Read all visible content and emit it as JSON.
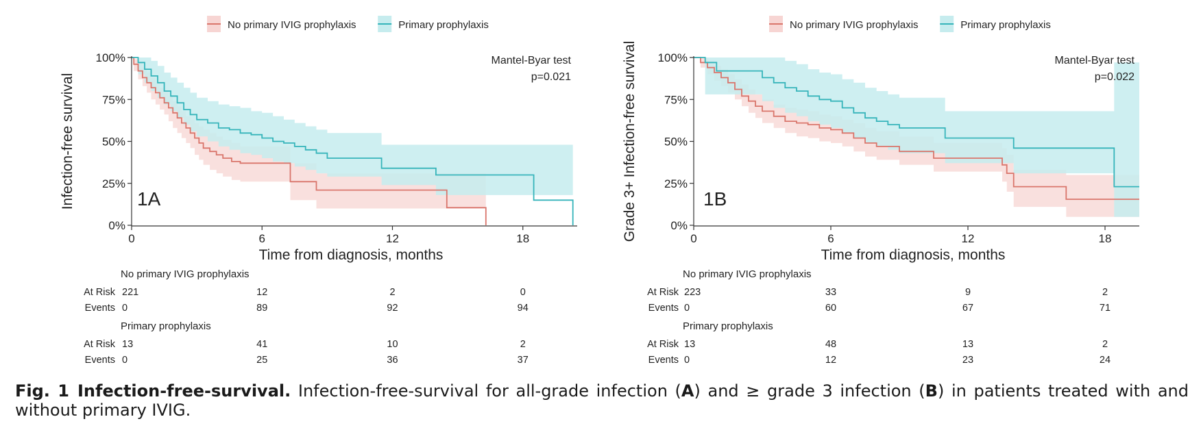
{
  "colors": {
    "no_ivig": "#d9756b",
    "no_ivig_band": "#f7d5d3",
    "primary": "#35b4ba",
    "primary_band": "#c6ecee",
    "axis": "#333333"
  },
  "chart_data": [
    {
      "type": "line",
      "panel_label": "1A",
      "ylabel": "Infection-free survival",
      "xlabel": "Time from diagnosis, months",
      "xlim": [
        0,
        20.5
      ],
      "ylim": [
        0,
        1
      ],
      "x_ticks": [
        0,
        6,
        12,
        18
      ],
      "x_tick_labels": [
        "0",
        "6",
        "12",
        "18"
      ],
      "y_ticks": [
        0,
        0.25,
        0.5,
        0.75,
        1
      ],
      "y_tick_labels": [
        "0%",
        "25%",
        "50%",
        "75%",
        "100%"
      ],
      "test": {
        "name": "Mantel-Byar test",
        "p": "p=0.021"
      },
      "legend": {
        "position": "top-center"
      },
      "series": [
        {
          "name": "No primary IVIG prophylaxis",
          "color_key": "no_ivig",
          "x": [
            0,
            0.1,
            0.3,
            0.5,
            0.7,
            0.9,
            1.1,
            1.3,
            1.5,
            1.7,
            1.9,
            2.1,
            2.3,
            2.5,
            2.7,
            2.9,
            3.1,
            3.3,
            3.6,
            3.9,
            4.2,
            4.6,
            5.0,
            5.5,
            6.0,
            6.5,
            7.0,
            7.3,
            7.6,
            8.2,
            8.5,
            9.0,
            10.0,
            11.0,
            12.0,
            13.0,
            14.0,
            14.5,
            15.0,
            15.5,
            16.0,
            16.3
          ],
          "y": [
            1.0,
            0.96,
            0.92,
            0.88,
            0.85,
            0.82,
            0.79,
            0.76,
            0.73,
            0.7,
            0.67,
            0.64,
            0.61,
            0.58,
            0.55,
            0.52,
            0.49,
            0.46,
            0.44,
            0.42,
            0.4,
            0.38,
            0.37,
            0.37,
            0.37,
            0.37,
            0.37,
            0.26,
            0.26,
            0.26,
            0.21,
            0.21,
            0.21,
            0.21,
            0.21,
            0.21,
            0.21,
            0.105,
            0.105,
            0.105,
            0.105,
            0.0
          ],
          "lower": [
            1.0,
            0.92,
            0.87,
            0.83,
            0.79,
            0.75,
            0.72,
            0.69,
            0.66,
            0.62,
            0.58,
            0.55,
            0.52,
            0.49,
            0.46,
            0.42,
            0.39,
            0.36,
            0.33,
            0.31,
            0.29,
            0.27,
            0.26,
            0.26,
            0.26,
            0.26,
            0.26,
            0.15,
            0.15,
            0.15,
            0.1,
            0.1,
            0.1,
            0.1,
            0.1,
            0.1,
            0.1,
            0.1,
            0.1,
            0.1,
            0.1,
            0.1
          ],
          "upper": [
            1.0,
            0.99,
            0.97,
            0.94,
            0.91,
            0.88,
            0.85,
            0.82,
            0.8,
            0.77,
            0.74,
            0.71,
            0.68,
            0.65,
            0.63,
            0.61,
            0.59,
            0.57,
            0.55,
            0.53,
            0.51,
            0.49,
            0.47,
            0.47,
            0.47,
            0.47,
            0.47,
            0.37,
            0.37,
            0.37,
            0.31,
            0.31,
            0.31,
            0.31,
            0.31,
            0.31,
            0.31,
            0.31,
            0.31,
            0.31,
            0.31,
            0.31
          ]
        },
        {
          "name": "Primary prophylaxis",
          "color_key": "primary",
          "x": [
            0,
            0.3,
            0.6,
            0.9,
            1.2,
            1.5,
            1.8,
            2.1,
            2.4,
            2.7,
            3.0,
            3.5,
            4.0,
            4.5,
            5.0,
            5.5,
            6.0,
            6.5,
            7.0,
            7.5,
            8.0,
            8.5,
            9.0,
            10.0,
            11.0,
            11.5,
            12.0,
            13.0,
            14.0,
            15.0,
            16.0,
            17.0,
            18.0,
            18.5,
            19.0,
            19.5,
            20.0,
            20.3
          ],
          "y": [
            1.0,
            0.97,
            0.93,
            0.89,
            0.85,
            0.8,
            0.77,
            0.73,
            0.69,
            0.66,
            0.63,
            0.61,
            0.58,
            0.57,
            0.55,
            0.54,
            0.52,
            0.5,
            0.49,
            0.47,
            0.45,
            0.43,
            0.4,
            0.4,
            0.4,
            0.34,
            0.34,
            0.34,
            0.3,
            0.3,
            0.3,
            0.3,
            0.3,
            0.15,
            0.15,
            0.15,
            0.15,
            0.0
          ],
          "lower": [
            1.0,
            0.9,
            0.85,
            0.8,
            0.76,
            0.72,
            0.68,
            0.64,
            0.6,
            0.56,
            0.53,
            0.5,
            0.47,
            0.45,
            0.43,
            0.42,
            0.4,
            0.38,
            0.37,
            0.35,
            0.33,
            0.31,
            0.29,
            0.29,
            0.29,
            0.24,
            0.24,
            0.24,
            0.18,
            0.18,
            0.18,
            0.18,
            0.18,
            0.18,
            0.18,
            0.18,
            0.18,
            0.18
          ],
          "upper": [
            1.0,
            1.0,
            1.0,
            0.98,
            0.95,
            0.91,
            0.88,
            0.85,
            0.82,
            0.79,
            0.76,
            0.74,
            0.72,
            0.71,
            0.7,
            0.68,
            0.67,
            0.65,
            0.63,
            0.61,
            0.59,
            0.57,
            0.55,
            0.55,
            0.55,
            0.48,
            0.48,
            0.48,
            0.48,
            0.48,
            0.48,
            0.48,
            0.48,
            0.48,
            0.48,
            0.48,
            0.48,
            0.48
          ]
        }
      ],
      "risk_table": {
        "groups": [
          {
            "name": "No primary IVIG prophylaxis",
            "rows": [
              {
                "label": "At Risk",
                "values": [
                  "221",
                  "12",
                  "2",
                  "0"
                ]
              },
              {
                "label": "Events",
                "values": [
                  "0",
                  "89",
                  "92",
                  "94"
                ]
              }
            ]
          },
          {
            "name": "Primary prophylaxis",
            "rows": [
              {
                "label": "At Risk",
                "values": [
                  "13",
                  "41",
                  "10",
                  "2"
                ]
              },
              {
                "label": "Events",
                "values": [
                  "0",
                  "25",
                  "36",
                  "37"
                ]
              }
            ]
          }
        ]
      }
    },
    {
      "type": "line",
      "panel_label": "1B",
      "ylabel": "Grade 3+ Infection-free survival",
      "xlabel": "Time from diagnosis, months",
      "xlim": [
        0,
        19.5
      ],
      "ylim": [
        0,
        1
      ],
      "x_ticks": [
        0,
        6,
        12,
        18
      ],
      "x_tick_labels": [
        "0",
        "6",
        "12",
        "18"
      ],
      "y_ticks": [
        0,
        0.25,
        0.5,
        0.75,
        1
      ],
      "y_tick_labels": [
        "0%",
        "25%",
        "50%",
        "75%",
        "100%"
      ],
      "test": {
        "name": "Mantel-Byar test",
        "p": "p=0.022"
      },
      "legend": {
        "position": "top-center"
      },
      "series": [
        {
          "name": "No primary IVIG prophylaxis",
          "color_key": "no_ivig",
          "x": [
            0,
            0.3,
            0.6,
            0.9,
            1.2,
            1.5,
            1.8,
            2.1,
            2.4,
            2.7,
            3.0,
            3.5,
            4.0,
            4.5,
            5.0,
            5.5,
            6.0,
            6.5,
            7.0,
            7.5,
            8.0,
            8.5,
            9.0,
            10.0,
            10.5,
            11.0,
            12.0,
            13.0,
            13.5,
            13.7,
            14.0,
            15.0,
            16.0,
            16.3,
            17.0,
            18.0,
            18.5,
            19.5
          ],
          "y": [
            1.0,
            0.97,
            0.94,
            0.91,
            0.88,
            0.85,
            0.81,
            0.77,
            0.74,
            0.71,
            0.68,
            0.65,
            0.62,
            0.61,
            0.6,
            0.58,
            0.57,
            0.55,
            0.52,
            0.49,
            0.47,
            0.47,
            0.44,
            0.44,
            0.4,
            0.4,
            0.4,
            0.4,
            0.36,
            0.31,
            0.23,
            0.23,
            0.23,
            0.155,
            0.155,
            0.155,
            0.155,
            0.155
          ],
          "lower": [
            1.0,
            0.94,
            0.9,
            0.86,
            0.83,
            0.79,
            0.75,
            0.71,
            0.67,
            0.64,
            0.61,
            0.58,
            0.55,
            0.53,
            0.52,
            0.5,
            0.49,
            0.47,
            0.44,
            0.41,
            0.39,
            0.39,
            0.36,
            0.36,
            0.32,
            0.32,
            0.32,
            0.32,
            0.26,
            0.2,
            0.11,
            0.11,
            0.11,
            0.05,
            0.05,
            0.05,
            0.05,
            0.05
          ],
          "upper": [
            1.0,
            1.0,
            0.98,
            0.95,
            0.93,
            0.9,
            0.87,
            0.84,
            0.81,
            0.78,
            0.75,
            0.72,
            0.7,
            0.69,
            0.68,
            0.66,
            0.65,
            0.63,
            0.61,
            0.58,
            0.56,
            0.56,
            0.53,
            0.53,
            0.49,
            0.49,
            0.49,
            0.49,
            0.46,
            0.42,
            0.33,
            0.33,
            0.33,
            0.3,
            0.3,
            0.3,
            0.3,
            0.3
          ]
        },
        {
          "name": "Primary prophylaxis",
          "color_key": "primary",
          "x": [
            0,
            0.5,
            1.0,
            1.5,
            2.0,
            2.5,
            3.0,
            3.5,
            4.0,
            4.5,
            5.0,
            5.5,
            6.0,
            6.5,
            7.0,
            7.5,
            8.0,
            8.5,
            9.0,
            10.0,
            11.0,
            12.0,
            13.0,
            14.0,
            15.0,
            16.0,
            17.0,
            18.0,
            18.4,
            19.0,
            19.5
          ],
          "y": [
            1.0,
            0.97,
            0.92,
            0.92,
            0.92,
            0.92,
            0.88,
            0.85,
            0.82,
            0.8,
            0.77,
            0.75,
            0.74,
            0.7,
            0.67,
            0.64,
            0.62,
            0.6,
            0.58,
            0.58,
            0.52,
            0.52,
            0.52,
            0.46,
            0.46,
            0.46,
            0.46,
            0.46,
            0.23,
            0.23,
            0.23
          ],
          "lower": [
            1.0,
            0.78,
            0.78,
            0.78,
            0.78,
            0.78,
            0.74,
            0.7,
            0.67,
            0.65,
            0.62,
            0.6,
            0.58,
            0.55,
            0.52,
            0.49,
            0.47,
            0.45,
            0.43,
            0.43,
            0.37,
            0.37,
            0.37,
            0.31,
            0.31,
            0.31,
            0.31,
            0.31,
            0.05,
            0.05,
            0.05
          ],
          "upper": [
            1.0,
            1.0,
            1.0,
            1.0,
            1.0,
            1.0,
            1.0,
            1.0,
            0.98,
            0.96,
            0.93,
            0.91,
            0.9,
            0.87,
            0.85,
            0.82,
            0.8,
            0.78,
            0.76,
            0.76,
            0.68,
            0.68,
            0.68,
            0.68,
            0.68,
            0.68,
            0.68,
            0.68,
            0.97,
            0.97,
            0.97
          ]
        }
      ],
      "risk_table": {
        "groups": [
          {
            "name": "No primary IVIG prophylaxis",
            "rows": [
              {
                "label": "At Risk",
                "values": [
                  "223",
                  "33",
                  "9",
                  "2"
                ]
              },
              {
                "label": "Events",
                "values": [
                  "0",
                  "60",
                  "67",
                  "71"
                ]
              }
            ]
          },
          {
            "name": "Primary prophylaxis",
            "rows": [
              {
                "label": "At Risk",
                "values": [
                  "13",
                  "48",
                  "13",
                  "2"
                ]
              },
              {
                "label": "Events",
                "values": [
                  "0",
                  "12",
                  "23",
                  "24"
                ]
              }
            ]
          }
        ]
      }
    }
  ],
  "caption": {
    "fig_number": "Fig. 1",
    "title": "Infection-free-survival.",
    "text_1": " Infection-free-survival for all-grade infection (",
    "panel_a": "A",
    "text_2": ") and ≥ grade 3 infection (",
    "panel_b": "B",
    "text_3": ") in patients treated with and without primary IVIG."
  }
}
